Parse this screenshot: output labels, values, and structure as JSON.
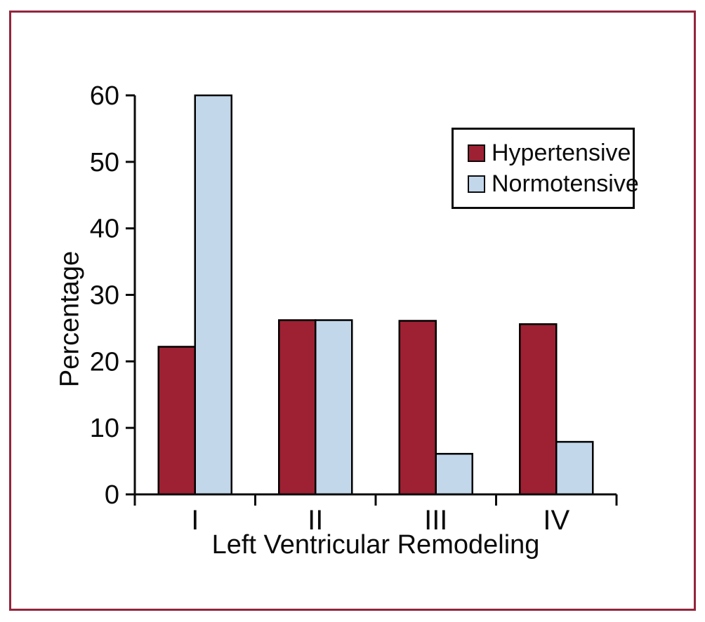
{
  "figure": {
    "frame_border_color": "#93253C",
    "background_color": "#FFFFFF",
    "axis_color": "#0B0B0B",
    "bar_outline_color": "#000000"
  },
  "chart_data": {
    "type": "bar",
    "title": "",
    "categories": [
      "I",
      "II",
      "III",
      "IV"
    ],
    "series": [
      {
        "name": "Hypertensive",
        "color": "#9E2033",
        "values": [
          22.2,
          26.2,
          26.1,
          25.6
        ]
      },
      {
        "name": "Normotensive",
        "color": "#C3D7EB",
        "values": [
          60,
          26.2,
          6.1,
          7.9
        ]
      }
    ],
    "xlabel": "Left Ventricular Remodeling",
    "ylabel": "Percentage",
    "ylim": [
      0,
      60
    ],
    "yticks": [
      0,
      10,
      20,
      30,
      40,
      50,
      60
    ],
    "grid": false,
    "legend_position": "top-right",
    "legend_border": true
  }
}
